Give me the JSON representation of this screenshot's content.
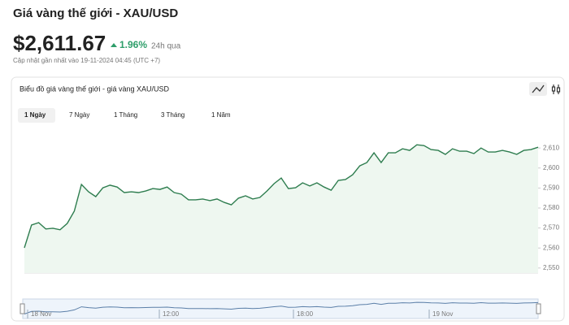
{
  "header": {
    "title": "Giá vàng thế giới - XAU/USD",
    "price": "$2,611.67",
    "change": "1.96%",
    "period": "24h qua",
    "updated": "Cập nhật gần nhất vào 19-11-2024 04:45 (UTC +7)"
  },
  "tabs": [
    "1 Ngày",
    "7 Ngày",
    "1 Tháng",
    "3 Tháng",
    "1 Năm"
  ],
  "chart_data": {
    "type": "area",
    "title": "Biểu đồ giá vàng thế giới - giá vàng XAU/USD",
    "values": [
      2560.1,
      2571.5,
      2572.7,
      2569.5,
      2569.9,
      2569.1,
      2572.3,
      2578.4,
      2591.8,
      2588.1,
      2585.7,
      2590.1,
      2591.4,
      2590.5,
      2587.7,
      2588.1,
      2587.7,
      2588.5,
      2589.7,
      2589.3,
      2590.5,
      2587.7,
      2586.9,
      2584.1,
      2584.1,
      2584.5,
      2583.7,
      2584.5,
      2582.8,
      2581.6,
      2584.9,
      2586.1,
      2584.5,
      2585.3,
      2588.5,
      2592.2,
      2595.0,
      2589.7,
      2590.1,
      2592.6,
      2591.0,
      2592.6,
      2590.5,
      2588.9,
      2593.8,
      2594.2,
      2596.6,
      2601.1,
      2602.7,
      2607.6,
      2602.7,
      2607.6,
      2607.6,
      2609.6,
      2608.8,
      2611.6,
      2611.2,
      2609.2,
      2608.8,
      2606.8,
      2609.6,
      2608.4,
      2608.4,
      2607.2,
      2610.0,
      2608.0,
      2608.0,
      2608.8,
      2608.0,
      2606.8,
      2608.8,
      2609.2,
      2610.4
    ],
    "color": "#2e7d4f",
    "ylim": [
      2547.5,
      2619
    ],
    "yticks": [
      {
        "value": 2550,
        "label": "2,550"
      },
      {
        "value": 2560,
        "label": "2,560"
      },
      {
        "value": 2570,
        "label": "2,570"
      },
      {
        "value": 2580,
        "label": "2,580"
      },
      {
        "value": 2590,
        "label": "2,590"
      },
      {
        "value": 2600,
        "label": "2,600"
      },
      {
        "value": 2610,
        "label": "2,610"
      }
    ],
    "navigator_labels": [
      "18 Nov",
      "12:00",
      "18:00",
      "19 Nov"
    ]
  }
}
